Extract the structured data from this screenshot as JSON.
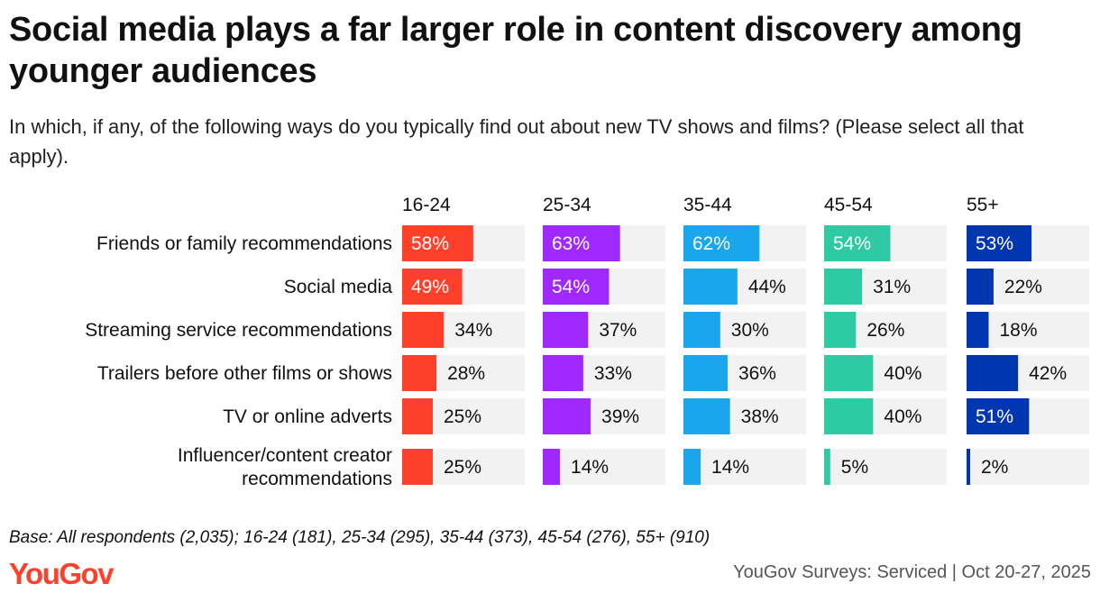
{
  "title": "Social media plays a far larger role in content discovery among younger audiences",
  "subtitle": "In which, if any, of the following ways do you typically find out about new TV shows and films? (Please select all that apply).",
  "base_note": "Base: All respondents (2,035); 16-24 (181), 25-34 (295), 35-44 (373), 45-54 (276), 55+ (910)",
  "brand": {
    "name": "YouGov",
    "color": "#ff412c"
  },
  "source": "YouGov Surveys: Serviced | Oct 20-27, 2025",
  "chart_data": {
    "type": "bar",
    "orientation": "horizontal",
    "unit": "%",
    "xlim": [
      0,
      100
    ],
    "categories": [
      [
        "Friends or family recommendations"
      ],
      [
        "Social media"
      ],
      [
        "Streaming service recommendations"
      ],
      [
        "Trailers before other films or shows"
      ],
      [
        "TV or online adverts"
      ],
      [
        "Influencer/content creator",
        "recommendations"
      ]
    ],
    "track_color": "#f2f2f2",
    "series": [
      {
        "name": "16-24",
        "color": "#ff412c",
        "values": [
          58,
          49,
          34,
          28,
          25,
          25
        ]
      },
      {
        "name": "25-34",
        "color": "#9f29ff",
        "values": [
          63,
          54,
          37,
          33,
          39,
          14
        ]
      },
      {
        "name": "35-44",
        "color": "#1aa6ec",
        "values": [
          62,
          44,
          30,
          36,
          38,
          14
        ]
      },
      {
        "name": "45-54",
        "color": "#2ecaa4",
        "values": [
          54,
          31,
          26,
          40,
          40,
          5
        ]
      },
      {
        "name": "55+",
        "color": "#0036af",
        "values": [
          53,
          22,
          18,
          42,
          51,
          2
        ]
      }
    ]
  }
}
